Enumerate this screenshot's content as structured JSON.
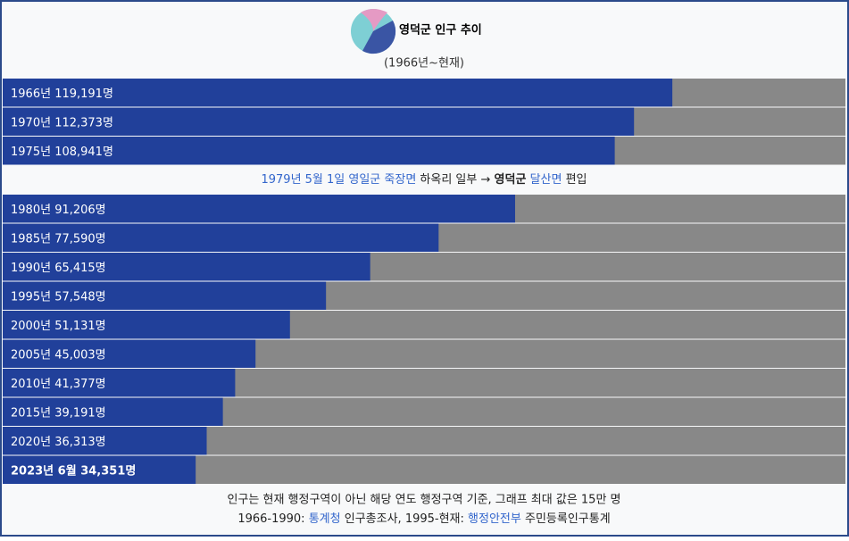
{
  "chart_data": {
    "type": "bar",
    "title": "영덕군 인구 추이",
    "subtitle": "(1966년~현재)",
    "categories": [
      "1966년",
      "1970년",
      "1975년",
      "1980년",
      "1985년",
      "1990년",
      "1995년",
      "2000년",
      "2005년",
      "2010년",
      "2015년",
      "2020년",
      "2023년 6월"
    ],
    "values": [
      119191,
      112373,
      108941,
      91206,
      77590,
      65415,
      57548,
      51131,
      45003,
      41377,
      39191,
      36313,
      34351
    ],
    "value_labels": [
      "119,191명",
      "112,373명",
      "108,941명",
      "91,206명",
      "77,590명",
      "65,415명",
      "57,548명",
      "51,131명",
      "45,003명",
      "41,377명",
      "39,191명",
      "36,313명",
      "34,351명"
    ],
    "xlim": [
      0,
      150000
    ],
    "color": "#21409a",
    "track_color": "#888888",
    "annotation": [
      "1979년 5월 1일 영일군 죽장면",
      "하옥리 일부 →",
      "영덕군",
      "달산면",
      "편입"
    ],
    "notes": [
      "인구는 현재 행정구역이 아닌 해당 연도 행정구역 기준, 그래프 최대 값은 15만 명",
      [
        "1966-1990:",
        "통계청",
        "인구총조사, 1995-현재:",
        "행정안전부",
        "주민등록인구통계"
      ]
    ]
  }
}
